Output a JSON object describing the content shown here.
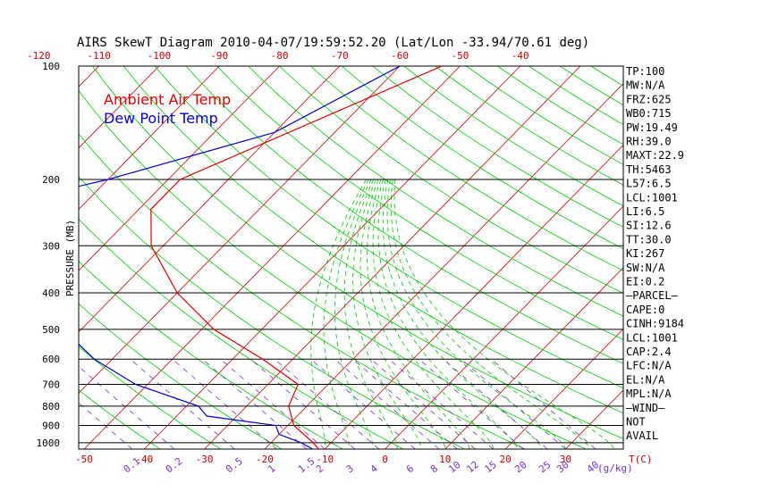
{
  "chart_data": {
    "type": "line",
    "title": "AIRS SkewT Diagram 2010-04-07/19:59:52.20 (Lat/Lon -33.94/70.61 deg)",
    "ylabel": "PRESSURE (MB)",
    "xlabel": "T(C)",
    "mixing_ratio_unit": "(g/kg)",
    "legend": [
      "Ambient Air Temp",
      "Dew Point Temp"
    ],
    "legend_position": "top-left",
    "pressure_ticks": [
      100,
      200,
      300,
      400,
      500,
      600,
      700,
      800,
      900,
      1000
    ],
    "bottom_temp_ticks": [
      -50,
      -40,
      -30,
      -20,
      -10,
      0,
      10,
      20,
      30
    ],
    "top_temp_ticks": [
      -120,
      -110,
      -100,
      -90,
      -80,
      -70,
      -60,
      -50,
      -40
    ],
    "mixing_ratio_ticks": [
      "0.1",
      "0.2",
      "0.5",
      "1",
      "1.5",
      "2",
      "3",
      "4",
      "6",
      "8",
      "10",
      "12",
      "15",
      "20",
      "25",
      "30",
      "40"
    ],
    "series": [
      {
        "name": "Ambient Air Temp",
        "color": "#e00000",
        "pressure": [
          100,
          200,
          240,
          300,
          400,
          500,
          600,
          700,
          800,
          900,
          1000,
          1040
        ],
        "values": [
          -53,
          -78,
          -78,
          -72,
          -60,
          -48,
          -35,
          -25,
          -23,
          -19,
          -13,
          -11
        ]
      },
      {
        "name": "Dew Point Temp",
        "color": "#0000cc",
        "pressure": [
          100,
          150,
          200,
          250,
          300,
          400,
          500,
          600,
          700,
          800,
          850,
          900,
          950,
          1000,
          1040
        ],
        "values": [
          -60,
          -70,
          -90,
          -110,
          -102,
          -80,
          -73,
          -63,
          -52,
          -38,
          -35,
          -22,
          -20,
          -15,
          -12
        ]
      }
    ],
    "isotherm_color": "#cc0000",
    "dry_adiabat_color": "#00cc00",
    "mixing_ratio_color": "#7733cc",
    "moist_adiabat_color": "#00cc00"
  },
  "indices": [
    "TP:100",
    "MW:N/A",
    "FRZ:625",
    "WB0:715",
    "PW:19.49",
    "RH:39.0",
    "MAXT:22.9",
    "TH:5463",
    "L57:6.5",
    "LCL:1001",
    "LI:6.5",
    "SI:12.6",
    "TT:30.0",
    "KI:267",
    "SW:N/A",
    "EI:0.2",
    "—PARCEL—",
    "CAPE:0",
    "CINH:9184",
    "LCL:1001",
    "CAP:2.4",
    "LFC:N/A",
    "EL:N/A",
    "MPL:N/A",
    "—WIND—",
    "NOT",
    "AVAIL"
  ]
}
